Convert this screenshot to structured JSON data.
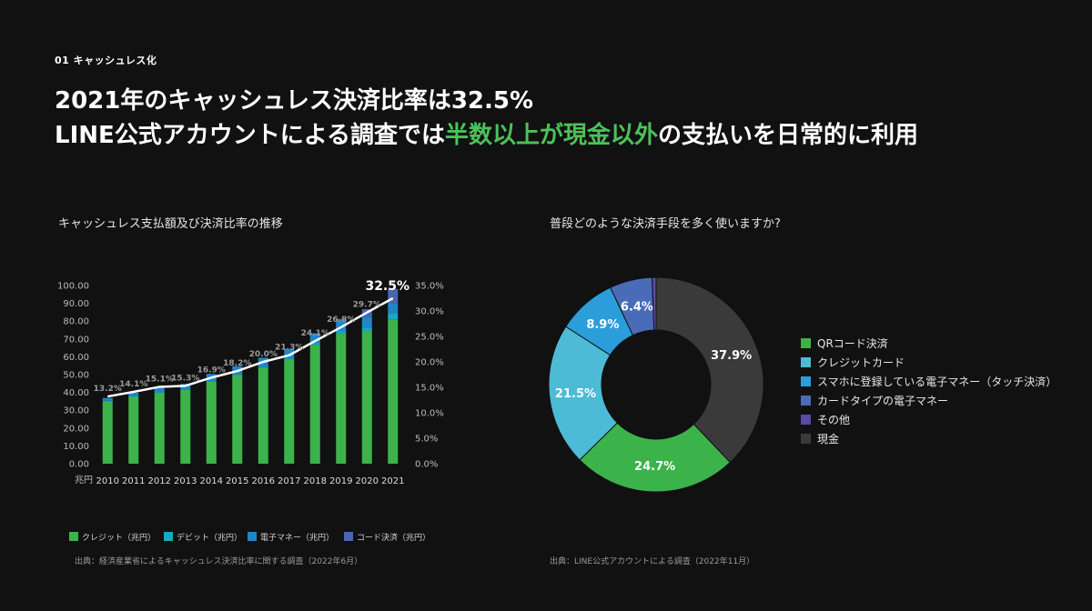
{
  "section_label": "01 キャッシュレス化",
  "headline": {
    "line1": "2021年のキャッシュレス決済比率は32.5%",
    "line2_pre": "LINE公式アカウントによる調査では",
    "line2_accent": "半数以上が現金以外",
    "line2_post": "の支払いを日常的に利用"
  },
  "colors": {
    "accent_green": "#4cc25a",
    "credit": "#3cb34a",
    "debit": "#1aa7c4",
    "emoney": "#1f86c7",
    "code": "#4a66b0",
    "donut_qr": "#3cb34a",
    "donut_credit": "#4dbad6",
    "donut_smartphone": "#2b9ddb",
    "donut_card_emoney": "#4a6cb8",
    "donut_other": "#5b4aa3",
    "donut_cash": "#3a3a3a"
  },
  "chart_data": [
    {
      "type": "bar",
      "title": "キャッシュレス支払額及び決済比率の推移",
      "source": "出典：経済産業省によるキャッシュレス決済比率に関する調査（2022年6月）",
      "x_unit_label": "兆円",
      "categories": [
        "2010",
        "2011",
        "2012",
        "2013",
        "2014",
        "2015",
        "2016",
        "2017",
        "2018",
        "2019",
        "2020",
        "2021"
      ],
      "stacked": true,
      "series": [
        {
          "name": "クレジット（兆円）",
          "values": [
            35.0,
            37.5,
            39.8,
            41.5,
            46.0,
            49.8,
            53.9,
            58.4,
            66.7,
            73.0,
            74.0,
            81.0
          ]
        },
        {
          "name": "デビット（兆円）",
          "values": [
            0.3,
            0.3,
            0.3,
            0.3,
            0.4,
            0.4,
            0.5,
            0.7,
            0.9,
            1.5,
            2.5,
            3.2
          ]
        },
        {
          "name": "電子マネー（兆円）",
          "values": [
            1.6,
            2.0,
            2.4,
            3.0,
            4.0,
            4.6,
            5.1,
            5.2,
            5.5,
            5.8,
            6.0,
            6.0
          ]
        },
        {
          "name": "コード決済（兆円）",
          "values": [
            0,
            0,
            0,
            0,
            0,
            0,
            0,
            0,
            0.2,
            1.0,
            4.2,
            7.9
          ]
        }
      ],
      "ratio_line": {
        "values": [
          13.2,
          14.1,
          15.1,
          15.3,
          16.9,
          18.2,
          20.0,
          21.3,
          24.1,
          26.8,
          29.7,
          32.5
        ],
        "labels": [
          "13.2%",
          "14.1%",
          "15.1%",
          "15.3%",
          "16.9%",
          "18.2%",
          "20.0%",
          "21.3%",
          "24.1%",
          "26.8%",
          "29.7%",
          "32.5%"
        ]
      },
      "ylim": [
        0,
        100
      ],
      "yticks": [
        "0.00",
        "10.00",
        "20.00",
        "30.00",
        "40.00",
        "50.00",
        "60.00",
        "70.00",
        "80.00",
        "90.00",
        "100.00"
      ],
      "y2lim": [
        0,
        35
      ],
      "y2ticks": [
        "0.0%",
        "5.0%",
        "10.0%",
        "15.0%",
        "20.0%",
        "25.0%",
        "30.0%",
        "35.0%"
      ],
      "legend_position": "bottom",
      "grid": false
    },
    {
      "type": "pie",
      "title": "普段どのような決済手段を多く使いますか?",
      "source": "出典：LINE公式アカウントによる調査（2022年11月）",
      "donut": true,
      "start_at_top": true,
      "slices": [
        {
          "name": "現金",
          "value": 37.9,
          "label": "37.9%"
        },
        {
          "name": "QRコード決済",
          "value": 24.7,
          "label": "24.7%"
        },
        {
          "name": "クレジットカード",
          "value": 21.5,
          "label": "21.5%"
        },
        {
          "name": "スマホに登録している電子マネー（タッチ決済）",
          "value": 8.9,
          "label": "8.9%"
        },
        {
          "name": "カードタイプの電子マネー",
          "value": 6.4,
          "label": "6.4%"
        },
        {
          "name": "その他",
          "value": 0.6,
          "label": ""
        }
      ],
      "legend_order": [
        "QRコード決済",
        "クレジットカード",
        "スマホに登録している電子マネー（タッチ決済）",
        "カードタイプの電子マネー",
        "その他",
        "現金"
      ],
      "legend_position": "right"
    }
  ]
}
